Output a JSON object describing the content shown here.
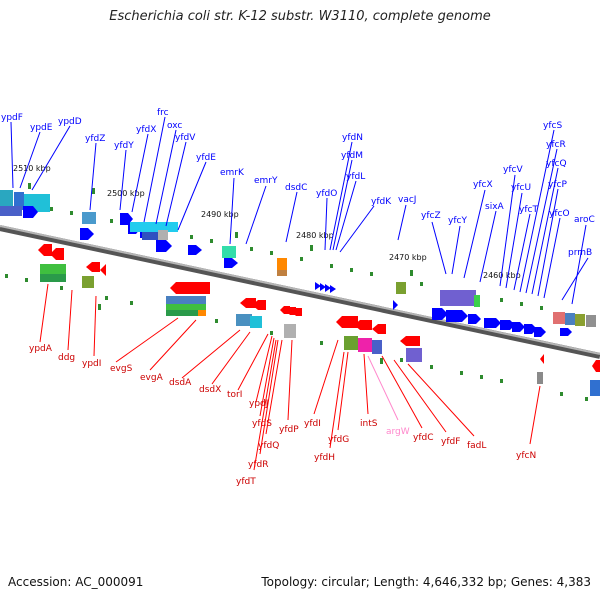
{
  "title": "Escherichia coli str. K-12 substr. W3110, complete genome",
  "footer": {
    "accession": "Accession: AC_000091",
    "summary": "Topology: circular; Length: 4,646,332 bp; Genes: 4,383"
  },
  "scale_labels": [
    "2510 kbp",
    "2500 kbp",
    "2490 kbp",
    "2480 kbp",
    "2470 kbp",
    "2460 kbp"
  ],
  "colors": {
    "forward_strand": "#0000ff",
    "reverse_strand": "#ff0000",
    "rna_gene": "#ff88cc",
    "backbone": "#888888"
  },
  "forward_genes": [
    "ypdF",
    "ypdE",
    "ypdD",
    "yfdZ",
    "yfdX",
    "frc",
    "oxc",
    "yfdY",
    "yfdV",
    "yfdE",
    "emrK",
    "emrY",
    "dsdC",
    "yfdN",
    "yfdM",
    "yfdO",
    "yfdL",
    "yfdK",
    "vacJ",
    "yfcZ",
    "yfcY",
    "yfcX",
    "sixA",
    "yfcV",
    "yfcU",
    "yfcT",
    "yfcS",
    "yfcR",
    "yfcQ",
    "yfcP",
    "yfcO",
    "prmB",
    "aroC"
  ],
  "reverse_genes": [
    "ypdA",
    "ddg",
    "ypdI",
    "evgS",
    "evgA",
    "dsdA",
    "dsdX",
    "torI",
    "ypdJ",
    "yfdS",
    "yfdQ",
    "yfdR",
    "yfdT",
    "yfdP",
    "yfdI",
    "yfdG",
    "yfdH",
    "intS",
    "argW",
    "yfdC",
    "yfdF",
    "fadL",
    "yfcN"
  ]
}
